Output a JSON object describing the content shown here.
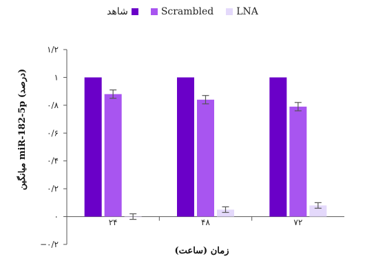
{
  "chart_data": {
    "type": "bar",
    "categories": [
      "۲۴",
      "۴۸",
      "۷۲"
    ],
    "series": [
      {
        "name": "شاهد",
        "values": [
          1.0,
          1.0,
          1.0
        ],
        "errors": [
          0.0,
          0.0,
          0.0
        ],
        "color": "#6a00c8"
      },
      {
        "name": "Scrambled",
        "values": [
          0.88,
          0.84,
          0.79
        ],
        "errors": [
          0.03,
          0.03,
          0.03
        ],
        "color": "#a855f0"
      },
      {
        "name": "LNA",
        "values": [
          0.0,
          0.05,
          0.08
        ],
        "errors": [
          0.02,
          0.02,
          0.02
        ],
        "color": "#e4d9fb"
      }
    ],
    "xlabel": "زمان (ساعت)",
    "ylabel": "میانگین miR-182-5p (درصد)",
    "ylim": [
      -0.2,
      1.2
    ],
    "yticks": [
      {
        "value": 1.2,
        "label": "۱/۲"
      },
      {
        "value": 1.0,
        "label": "۱"
      },
      {
        "value": 0.8,
        "label": "۰/۸"
      },
      {
        "value": 0.6,
        "label": "۰/۶"
      },
      {
        "value": 0.4,
        "label": "۰/۴"
      },
      {
        "value": 0.2,
        "label": "۰/۲"
      },
      {
        "value": 0.0,
        "label": "۰"
      },
      {
        "value": -0.2,
        "label": "−۰/۲"
      }
    ],
    "legend_position": "top"
  }
}
